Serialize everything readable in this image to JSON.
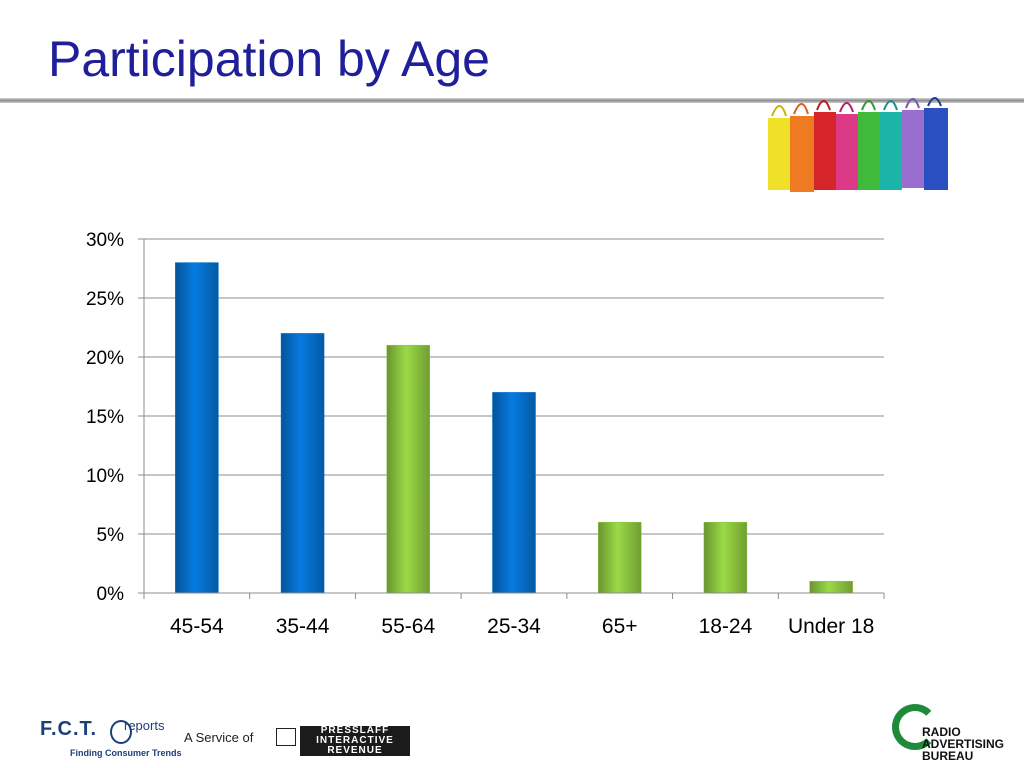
{
  "title": "Participation by Age",
  "chart_data": {
    "type": "bar",
    "title": "",
    "xlabel": "",
    "ylabel": "",
    "categories": [
      "45-54",
      "35-44",
      "55-64",
      "25-34",
      "65+",
      "18-24",
      "Under 18"
    ],
    "values": [
      28,
      22,
      21,
      17,
      6,
      6,
      1
    ],
    "bar_colors": [
      "#0570cc",
      "#0570cc",
      "#8cc640",
      "#0570cc",
      "#8cc640",
      "#8cc640",
      "#8cc640"
    ],
    "ylim": [
      0,
      30
    ],
    "yticks": [
      0,
      5,
      10,
      15,
      20,
      25,
      30
    ],
    "ytick_labels": [
      "0%",
      "5%",
      "10%",
      "15%",
      "20%",
      "25%",
      "30%"
    ],
    "grid": true,
    "legend": "none"
  },
  "footer": {
    "fct_logo": "F.C.T.",
    "fct_reports": "reports",
    "fct_tagline": "Finding Consumer Trends",
    "service_text": "A Service of",
    "presslaff_line1": "PRESSLAFF",
    "presslaff_line2": "INTERACTIVE",
    "presslaff_line3": "REVENUE",
    "rab_text": "RADIO ADVERTISING BUREAU"
  },
  "colors": {
    "title": "#1f1f9a",
    "blue_bar": "#0570cc",
    "green_bar": "#8cc640"
  }
}
